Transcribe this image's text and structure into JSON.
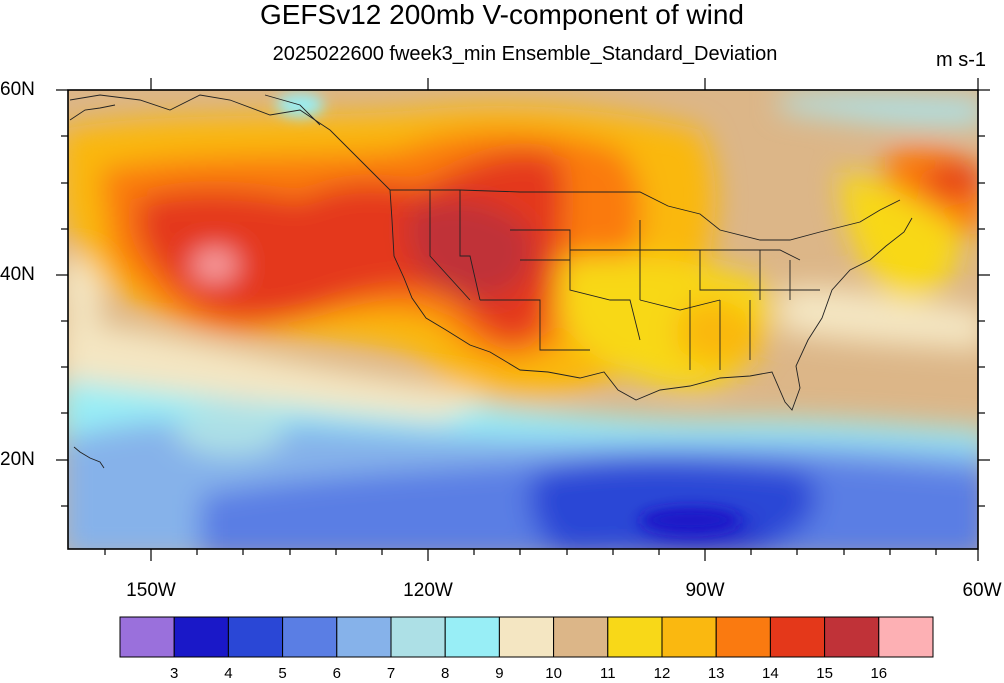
{
  "map": {
    "title": "GEFSv12 200mb V-component of wind",
    "subtitle": "2025022600 fweek3_min Ensemble_Standard_Deviation",
    "units": "m s-1",
    "lat_labels": [
      "60N",
      "40N",
      "20N"
    ],
    "lon_labels": [
      "150W",
      "120W",
      "90W",
      "60W"
    ],
    "region": {
      "lon": [
        -159,
        -60
      ],
      "lat": [
        10,
        60
      ]
    }
  },
  "legend": {
    "colors": [
      "#9a70dc",
      "#1a18c8",
      "#2a47d6",
      "#5a7ee4",
      "#86b2ea",
      "#ade0e6",
      "#98eef6",
      "#f4e6c2",
      "#dcb688",
      "#f8d818",
      "#fab810",
      "#fa7a10",
      "#e4381a",
      "#c03238",
      "#fdb0b4"
    ],
    "labels": [
      "3",
      "4",
      "5",
      "6",
      "7",
      "8",
      "9",
      "10",
      "11",
      "12",
      "13",
      "14",
      "15",
      "16"
    ]
  }
}
